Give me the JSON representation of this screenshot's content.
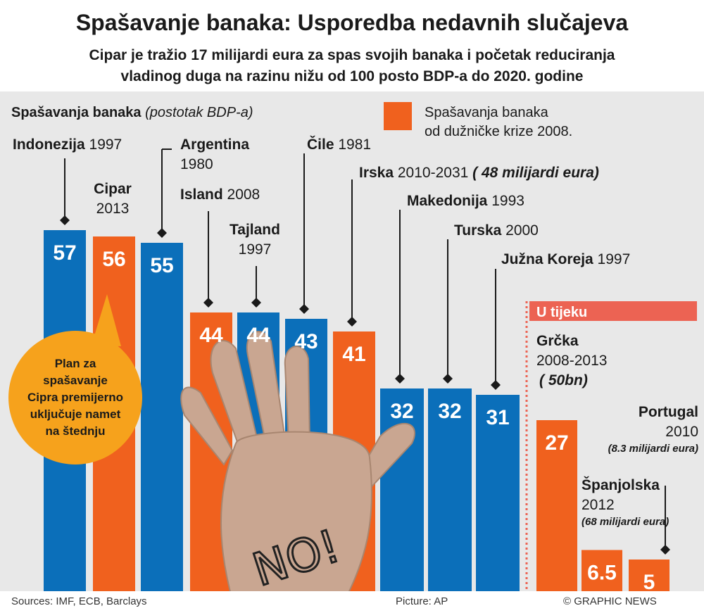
{
  "title": "Spašavanje banaka: Usporedba nedavnih slučajeva",
  "subtitle": [
    "Cipar je tražio 17 milijardi eura za spas svojih banaka i početak reduciranja",
    "vladinog duga na razinu nižu od 100 posto BDP-a do 2020. godine"
  ],
  "axis_label": {
    "bold": "Spašavanja banaka",
    "italic": "(postotak BDP-a)"
  },
  "legend": {
    "line1": "Spašavanja banaka",
    "line2": "od dužničke krize 2008."
  },
  "ongoing_label": "U tijeku",
  "bubble_lines": [
    "Plan za",
    "spašavanje",
    "Cipra premijerno",
    "uključuje namet",
    "na štednju"
  ],
  "palm_text": "NO!",
  "colors": {
    "blue": "#0b6fba",
    "orange": "#f0611e",
    "bubble": "#f6a21c",
    "ongoing_band": "#ec6353",
    "plot_bg": "#e8e8e8"
  },
  "footer": {
    "sources": "Sources: IMF, ECB, Barclays",
    "picture": "Picture: AP",
    "credit": "© GRAPHIC NEWS"
  },
  "chart_data": {
    "type": "bar",
    "ylabel": "Spašavanja banaka (postotak BDP-a)",
    "ylim": [
      0,
      60
    ],
    "grid": false,
    "legend_placement": "top-center",
    "categories": [
      "Indonezija 1997",
      "Cipar 2013",
      "Argentina 1980",
      "Island 2008",
      "Tajland 1997",
      "Čile 1981",
      "Irska 2010-2031",
      "Makedonija 1993",
      "Turska 2000",
      "Južna Koreja 1997",
      "Grčka 2008-2013",
      "Portugal 2010",
      "Španjolska 2012"
    ],
    "values": [
      57,
      56,
      55,
      44,
      44,
      43,
      41,
      32,
      32,
      31,
      27,
      6.5,
      5
    ],
    "value_labels": [
      "57",
      "56",
      "55",
      "44",
      "44",
      "43",
      "41",
      "32",
      "32",
      "31",
      "27",
      "6.5",
      "5"
    ],
    "since_2008_crisis": [
      false,
      true,
      false,
      true,
      false,
      false,
      true,
      false,
      false,
      false,
      true,
      true,
      true
    ],
    "ongoing": [
      false,
      false,
      false,
      false,
      false,
      false,
      false,
      false,
      false,
      false,
      true,
      true,
      true
    ],
    "bar_labels": [
      {
        "name": "Indonezija",
        "year": "1997",
        "note": ""
      },
      {
        "name": "Cipar",
        "year": "2013",
        "note": ""
      },
      {
        "name": "Argentina",
        "year": "1980",
        "note": ""
      },
      {
        "name": "Island",
        "year": "2008",
        "note": ""
      },
      {
        "name": "Tajland",
        "year": "1997",
        "note": ""
      },
      {
        "name": "Čile",
        "year": "1981",
        "note": ""
      },
      {
        "name": "Irska",
        "year": "2010-2031",
        "note": "( 48 milijardi eura)"
      },
      {
        "name": "Makedonija",
        "year": "1993",
        "note": ""
      },
      {
        "name": "Turska",
        "year": "2000",
        "note": ""
      },
      {
        "name": "Južna Koreja",
        "year": "1997",
        "note": ""
      },
      {
        "name": "Grčka",
        "year": "2008-2013",
        "note": "( 50bn)"
      },
      {
        "name": "Portugal",
        "year": "2010",
        "note": "(8.3 milijardi eura)"
      },
      {
        "name": "Španjolska",
        "year": "2012",
        "note": "(68 milijardi eura)"
      }
    ]
  }
}
